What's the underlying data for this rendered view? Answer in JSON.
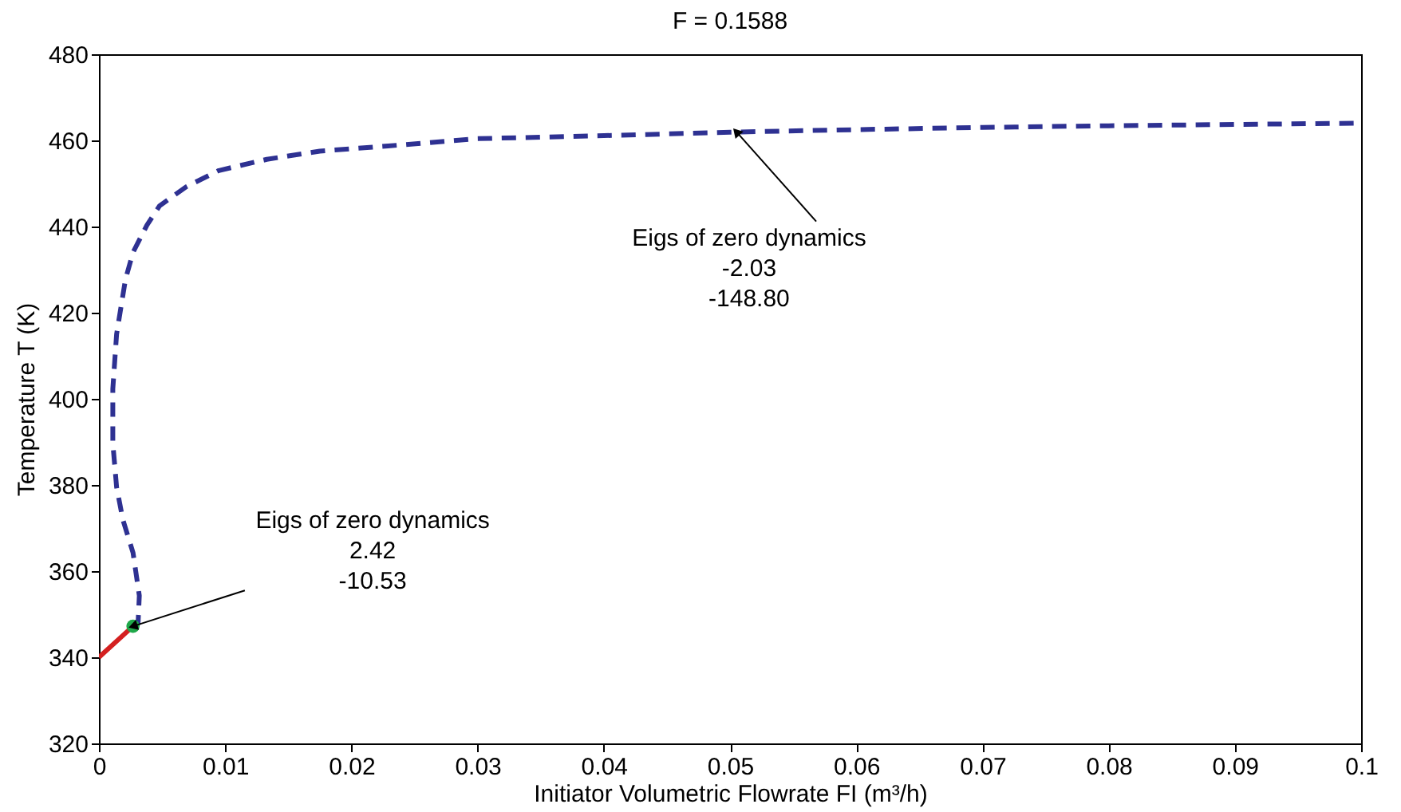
{
  "chart_data": {
    "type": "line",
    "title": "F = 0.1588",
    "xlabel": "Initiator Volumetric Flowrate  FI  (m³/h)",
    "ylabel": "Temperature  T  (K)",
    "xlim": [
      0,
      0.1
    ],
    "xticks": [
      0,
      0.01,
      0.02,
      0.03,
      0.04,
      0.05,
      0.06,
      0.07,
      0.08,
      0.09,
      0.1
    ],
    "ylim": [
      320,
      480
    ],
    "yticks": [
      320,
      340,
      360,
      380,
      400,
      420,
      440,
      460,
      480
    ],
    "grid": false,
    "series": [
      {
        "type": "line",
        "color": "#d42020",
        "line_style": "solid",
        "x": [
          0,
          0.0027
        ],
        "values": [
          340,
          347.2
        ]
      },
      {
        "type": "line",
        "color": "#2e3192",
        "line_style": "dashed",
        "x": [
          0.0027,
          0.0031,
          0.0032,
          0.0027,
          0.0019,
          0.0014,
          0.0011,
          0.0011,
          0.0014,
          0.0021,
          0.0027,
          0.0038,
          0.0048,
          0.0069,
          0.0095,
          0.0133,
          0.0175,
          0.0229,
          0.03,
          0.04,
          0.05,
          0.06,
          0.07,
          0.08,
          0.09,
          0.1
        ],
        "values": [
          347.2,
          347.8,
          354.3,
          364.3,
          371.9,
          379.5,
          389.7,
          402.3,
          415,
          427.7,
          434,
          440.3,
          444.8,
          449.2,
          453,
          455.6,
          457.5,
          458.7,
          460.4,
          461.1,
          461.9,
          462.5,
          463,
          463.4,
          463.7,
          464
        ]
      },
      {
        "type": "scatter",
        "color": "#1fa84a",
        "marker": "circle",
        "x": [
          0.0027
        ],
        "values": [
          347.2
        ]
      }
    ],
    "annotations": [
      {
        "text": "Eigs of zero dynamics\n2.42\n-10.53",
        "x": 0.0027,
        "y": 347.2
      },
      {
        "text": "Eigs of zero dynamics\n-2.03\n-148.80",
        "x": 0.0505,
        "y": 462
      }
    ]
  }
}
